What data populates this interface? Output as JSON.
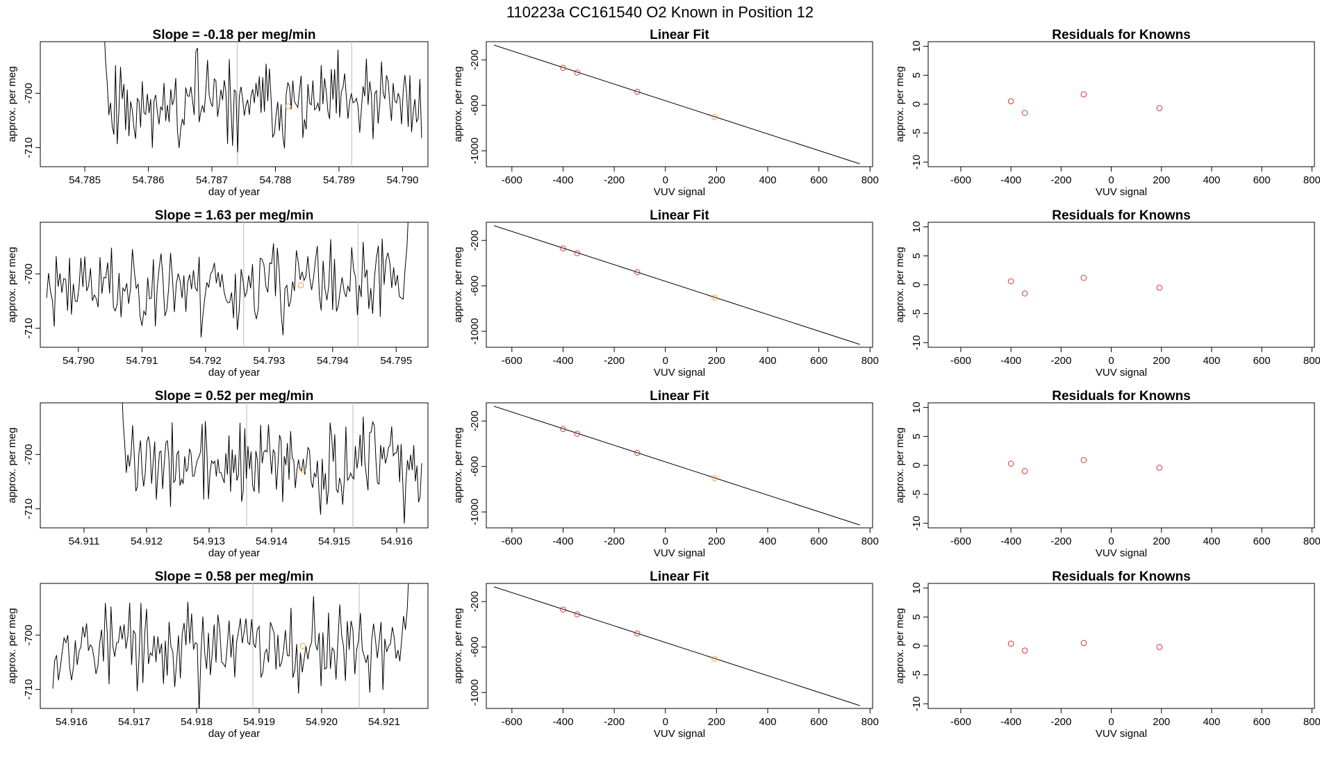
{
  "page_title": "110223a      CC161540    O2 Known in Position  12",
  "labels": {
    "ts_ylabel": "approx. per meg",
    "ts_xlabel": "day of year",
    "fit_title": "Linear Fit",
    "fit_ylabel": "approx. per meg",
    "fit_xlabel": "VUV signal",
    "res_title": "Residuals for Knowns",
    "res_ylabel": "approx. per meg",
    "res_xlabel": "VUV signal"
  },
  "colors": {
    "line": "#000000",
    "point_known": "#cd3b2d",
    "point_sample": "#f0a030",
    "vline": "#c8c8c8"
  },
  "chart_data": [
    {
      "type": "line",
      "title": "Slope =  -0.18  per meg/min",
      "xlabel": "day of year",
      "ylabel": "approx. per meg",
      "xlim": [
        54.7843,
        54.7904
      ],
      "ylim": [
        -713.5,
        -690.5
      ],
      "xticks": [
        54.785,
        54.786,
        54.787,
        54.788,
        54.789,
        54.79
      ],
      "xtick_labels": [
        "54.785",
        "54.786",
        "54.787",
        "54.788",
        "54.789",
        "54.790"
      ],
      "yticks": [
        -710,
        -700
      ],
      "ytick_labels": [
        "-710",
        "-700"
      ],
      "trace_start": 54.7853,
      "trace_end": 54.7903,
      "vlines": [
        54.7874,
        54.7892
      ],
      "sample_point": {
        "x": 54.7882,
        "y": -702.4
      },
      "seed": 11
    },
    {
      "type": "line",
      "title": "Slope =  1.63  per meg/min",
      "xlabel": "day of year",
      "ylabel": "approx. per meg",
      "xlim": [
        54.7894,
        54.7955
      ],
      "ylim": [
        -713.5,
        -690.5
      ],
      "xticks": [
        54.79,
        54.791,
        54.792,
        54.793,
        54.794,
        54.795
      ],
      "xtick_labels": [
        "54.790",
        "54.791",
        "54.792",
        "54.793",
        "54.794",
        "54.795"
      ],
      "yticks": [
        -710,
        -700
      ],
      "ytick_labels": [
        "-710",
        "-700"
      ],
      "trace_start": 54.7895,
      "trace_end": 54.7952,
      "vlines": [
        54.7926,
        54.7944
      ],
      "sample_point": {
        "x": 54.7935,
        "y": -702.1
      },
      "seed": 23
    },
    {
      "type": "line",
      "title": "Slope =  0.52  per meg/min",
      "xlabel": "day of year",
      "ylabel": "approx. per meg",
      "xlim": [
        54.9103,
        54.9165
      ],
      "ylim": [
        -713.5,
        -690.5
      ],
      "xticks": [
        54.911,
        54.912,
        54.913,
        54.914,
        54.915,
        54.916
      ],
      "xtick_labels": [
        "54.911",
        "54.912",
        "54.913",
        "54.914",
        "54.915",
        "54.916"
      ],
      "yticks": [
        -710,
        -700
      ],
      "ytick_labels": [
        "-710",
        "-700"
      ],
      "trace_start": 54.9116,
      "trace_end": 54.9164,
      "vlines": [
        54.9136,
        54.9153
      ],
      "sample_point": {
        "x": 54.9145,
        "y": -702.8
      },
      "seed": 37
    },
    {
      "type": "line",
      "title": "Slope =  0.58  per meg/min",
      "xlabel": "day of year",
      "ylabel": "approx. per meg",
      "xlim": [
        54.9155,
        54.9217
      ],
      "ylim": [
        -713.5,
        -690.5
      ],
      "xticks": [
        54.916,
        54.917,
        54.918,
        54.919,
        54.92,
        54.921
      ],
      "xtick_labels": [
        "54.916",
        "54.917",
        "54.918",
        "54.919",
        "54.920",
        "54.921"
      ],
      "yticks": [
        -710,
        -700
      ],
      "ytick_labels": [
        "-710",
        "-700"
      ],
      "trace_start": 54.9157,
      "trace_end": 54.9214,
      "vlines": [
        54.9189,
        54.9206
      ],
      "sample_point": {
        "x": 54.9197,
        "y": -702.0
      },
      "seed": 53
    },
    {
      "type": "scatter",
      "title": "Linear Fit",
      "xlabel": "VUV signal",
      "ylabel": "approx. per meg",
      "xlim": [
        -700,
        810
      ],
      "ylim": [
        -1140,
        -40
      ],
      "xticks": [
        -600,
        -400,
        -200,
        0,
        200,
        400,
        600,
        800
      ],
      "yticks": [
        -1000,
        -600,
        -200
      ],
      "fit_line": {
        "x": [
          -670,
          760
        ],
        "y": [
          -70,
          -1115
        ]
      },
      "points": [
        {
          "x": -400,
          "y": -270,
          "kind": "known"
        },
        {
          "x": -345,
          "y": -312,
          "kind": "known"
        },
        {
          "x": -110,
          "y": -480,
          "kind": "known"
        },
        {
          "x": 192,
          "y": -703,
          "kind": "sample"
        }
      ]
    },
    {
      "type": "scatter",
      "title": "Linear Fit",
      "xlabel": "VUV signal",
      "ylabel": "approx. per meg",
      "xlim": [
        -700,
        810
      ],
      "ylim": [
        -1140,
        -40
      ],
      "xticks": [
        -600,
        -400,
        -200,
        0,
        200,
        400,
        600,
        800
      ],
      "yticks": [
        -1000,
        -600,
        -200
      ],
      "fit_line": {
        "x": [
          -670,
          760
        ],
        "y": [
          -70,
          -1115
        ]
      },
      "points": [
        {
          "x": -400,
          "y": -270,
          "kind": "known"
        },
        {
          "x": -345,
          "y": -312,
          "kind": "known"
        },
        {
          "x": -110,
          "y": -480,
          "kind": "known"
        },
        {
          "x": 192,
          "y": -703,
          "kind": "sample"
        }
      ]
    },
    {
      "type": "scatter",
      "title": "Linear Fit",
      "xlabel": "VUV signal",
      "ylabel": "approx. per meg",
      "xlim": [
        -700,
        810
      ],
      "ylim": [
        -1140,
        -40
      ],
      "xticks": [
        -600,
        -400,
        -200,
        0,
        200,
        400,
        600,
        800
      ],
      "yticks": [
        -1000,
        -600,
        -200
      ],
      "fit_line": {
        "x": [
          -670,
          760
        ],
        "y": [
          -70,
          -1115
        ]
      },
      "points": [
        {
          "x": -400,
          "y": -270,
          "kind": "known"
        },
        {
          "x": -345,
          "y": -312,
          "kind": "known"
        },
        {
          "x": -110,
          "y": -480,
          "kind": "known"
        },
        {
          "x": 192,
          "y": -703,
          "kind": "sample"
        }
      ]
    },
    {
      "type": "scatter",
      "title": "Linear Fit",
      "xlabel": "VUV signal",
      "ylabel": "approx. per meg",
      "xlim": [
        -700,
        810
      ],
      "ylim": [
        -1140,
        -40
      ],
      "xticks": [
        -600,
        -400,
        -200,
        0,
        200,
        400,
        600,
        800
      ],
      "yticks": [
        -1000,
        -600,
        -200
      ],
      "fit_line": {
        "x": [
          -670,
          760
        ],
        "y": [
          -70,
          -1115
        ]
      },
      "points": [
        {
          "x": -400,
          "y": -270,
          "kind": "known"
        },
        {
          "x": -345,
          "y": -312,
          "kind": "known"
        },
        {
          "x": -110,
          "y": -480,
          "kind": "known"
        },
        {
          "x": 192,
          "y": -703,
          "kind": "sample"
        }
      ]
    },
    {
      "type": "scatter",
      "title": "Residuals for Knowns",
      "xlabel": "VUV signal",
      "ylabel": "approx. per meg",
      "xlim": [
        -730,
        810
      ],
      "ylim": [
        -10.8,
        10.8
      ],
      "xticks": [
        -600,
        -400,
        -200,
        0,
        200,
        400,
        600,
        800
      ],
      "yticks": [
        -10,
        -5,
        0,
        5,
        10
      ],
      "points": [
        {
          "x": -400,
          "y": 0.5
        },
        {
          "x": -345,
          "y": -1.5
        },
        {
          "x": -110,
          "y": 1.7
        },
        {
          "x": 192,
          "y": -0.7
        }
      ]
    },
    {
      "type": "scatter",
      "title": "Residuals for Knowns",
      "xlabel": "VUV signal",
      "ylabel": "approx. per meg",
      "xlim": [
        -730,
        810
      ],
      "ylim": [
        -10.8,
        10.8
      ],
      "xticks": [
        -600,
        -400,
        -200,
        0,
        200,
        400,
        600,
        800
      ],
      "yticks": [
        -10,
        -5,
        0,
        5,
        10
      ],
      "points": [
        {
          "x": -400,
          "y": 0.6
        },
        {
          "x": -345,
          "y": -1.5
        },
        {
          "x": -110,
          "y": 1.2
        },
        {
          "x": 192,
          "y": -0.5
        }
      ]
    },
    {
      "type": "scatter",
      "title": "Residuals for Knowns",
      "xlabel": "VUV signal",
      "ylabel": "approx. per meg",
      "xlim": [
        -730,
        810
      ],
      "ylim": [
        -10.8,
        10.8
      ],
      "xticks": [
        -600,
        -400,
        -200,
        0,
        200,
        400,
        600,
        800
      ],
      "yticks": [
        -10,
        -5,
        0,
        5,
        10
      ],
      "points": [
        {
          "x": -400,
          "y": 0.3
        },
        {
          "x": -345,
          "y": -1.0
        },
        {
          "x": -110,
          "y": 0.9
        },
        {
          "x": 192,
          "y": -0.4
        }
      ]
    },
    {
      "type": "scatter",
      "title": "Residuals for Knowns",
      "xlabel": "VUV signal",
      "ylabel": "approx. per meg",
      "xlim": [
        -730,
        810
      ],
      "ylim": [
        -10.8,
        10.8
      ],
      "xticks": [
        -600,
        -400,
        -200,
        0,
        200,
        400,
        600,
        800
      ],
      "yticks": [
        -10,
        -5,
        0,
        5,
        10
      ],
      "points": [
        {
          "x": -400,
          "y": 0.4
        },
        {
          "x": -345,
          "y": -0.8
        },
        {
          "x": -110,
          "y": 0.5
        },
        {
          "x": 192,
          "y": -0.2
        }
      ]
    }
  ]
}
